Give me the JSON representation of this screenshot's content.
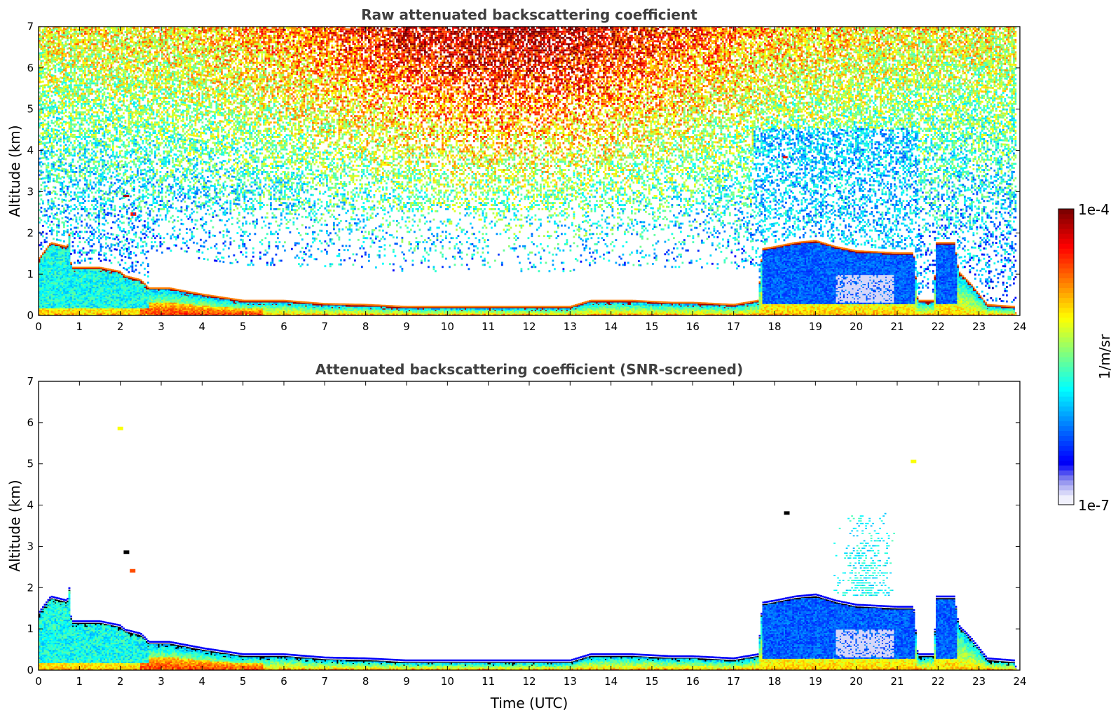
{
  "colors": {
    "jet": [
      "#00007f",
      "#0000ff",
      "#007fff",
      "#00ffff",
      "#7fff7f",
      "#ffff00",
      "#ff7f00",
      "#ff0000",
      "#7f0000"
    ],
    "low_shade": [
      "#f0f0fc",
      "#d6d6f8",
      "#b8b8f4",
      "#9a9af0",
      "#7676ee",
      "#4c4cf2",
      "#2222f8"
    ],
    "axis": "#000000",
    "title_text": "#404040",
    "black_layer": "#000000"
  },
  "colorbar": {
    "label": "1/m/sr",
    "max_label": "1e-4",
    "min_label": "1e-7",
    "scale": "log",
    "range": [
      1e-07,
      0.0001
    ]
  },
  "chart_data": [
    {
      "type": "heatmap",
      "title": "Raw attenuated backscattering coefficient",
      "xlabel": "",
      "ylabel": "Altitude (km)",
      "xlim": [
        0,
        24
      ],
      "ylim": [
        0,
        7
      ],
      "xticks": [
        "0",
        "1",
        "2",
        "3",
        "4",
        "5",
        "6",
        "7",
        "8",
        "9",
        "10",
        "11",
        "12",
        "13",
        "14",
        "15",
        "16",
        "17",
        "18",
        "19",
        "20",
        "21",
        "22",
        "23",
        "24"
      ],
      "yticks": [
        "0",
        "1",
        "2",
        "3",
        "4",
        "5",
        "6",
        "7"
      ],
      "layer_top_km": [
        [
          0,
          1.3
        ],
        [
          0.3,
          1.7
        ],
        [
          0.7,
          1.6
        ],
        [
          0.75,
          1.9
        ],
        [
          0.8,
          1.1
        ],
        [
          1.5,
          1.1
        ],
        [
          2.0,
          1.0
        ],
        [
          2.1,
          0.9
        ],
        [
          2.5,
          0.8
        ],
        [
          2.7,
          0.6
        ],
        [
          3.2,
          0.6
        ],
        [
          4,
          0.45
        ],
        [
          5,
          0.3
        ],
        [
          6,
          0.3
        ],
        [
          7,
          0.22
        ],
        [
          8,
          0.2
        ],
        [
          9,
          0.15
        ],
        [
          10,
          0.15
        ],
        [
          11,
          0.15
        ],
        [
          12,
          0.15
        ],
        [
          13,
          0.15
        ],
        [
          13.5,
          0.3
        ],
        [
          14.5,
          0.3
        ],
        [
          15.5,
          0.25
        ],
        [
          16,
          0.25
        ],
        [
          17,
          0.2
        ],
        [
          17.6,
          0.3
        ],
        [
          17.7,
          1.55
        ],
        [
          18,
          1.6
        ],
        [
          18.5,
          1.7
        ],
        [
          19,
          1.75
        ],
        [
          19.5,
          1.6
        ],
        [
          20,
          1.5
        ],
        [
          21,
          1.45
        ],
        [
          21.4,
          1.45
        ],
        [
          21.5,
          0.3
        ],
        [
          21.9,
          0.3
        ],
        [
          21.95,
          1.7
        ],
        [
          22.4,
          1.7
        ],
        [
          22.5,
          1.0
        ],
        [
          22.8,
          0.7
        ],
        [
          23.2,
          0.2
        ],
        [
          23.85,
          0.15
        ]
      ],
      "noise_intensity": {
        "description": "log10 backscatter of background noise rises with altitude, strongest near 11-12 UTC"
      }
    },
    {
      "type": "heatmap",
      "title": "Attenuated backscattering coefficient (SNR-screened)",
      "xlabel": "Time (UTC)",
      "ylabel": "Altitude (km)",
      "xlim": [
        0,
        24
      ],
      "ylim": [
        0,
        7
      ],
      "xticks": [
        "0",
        "1",
        "2",
        "3",
        "4",
        "5",
        "6",
        "7",
        "8",
        "9",
        "10",
        "11",
        "12",
        "13",
        "14",
        "15",
        "16",
        "17",
        "18",
        "19",
        "20",
        "21",
        "22",
        "23",
        "24"
      ],
      "yticks": [
        "0",
        "1",
        "2",
        "3",
        "4",
        "5",
        "6",
        "7"
      ],
      "isolated_features": [
        {
          "t": 2.15,
          "z": 2.9,
          "kind": "black"
        },
        {
          "t": 2.3,
          "z": 2.45,
          "kind": "warm"
        },
        {
          "t": 18.3,
          "z": 3.85,
          "kind": "black"
        },
        {
          "t": 21.4,
          "z": 5.1,
          "kind": "yellow"
        },
        {
          "t": 2.0,
          "z": 5.9,
          "kind": "yellow"
        }
      ],
      "cloud_plume": {
        "t_range": [
          19.4,
          21.0
        ],
        "z_top": 3.8
      }
    }
  ]
}
